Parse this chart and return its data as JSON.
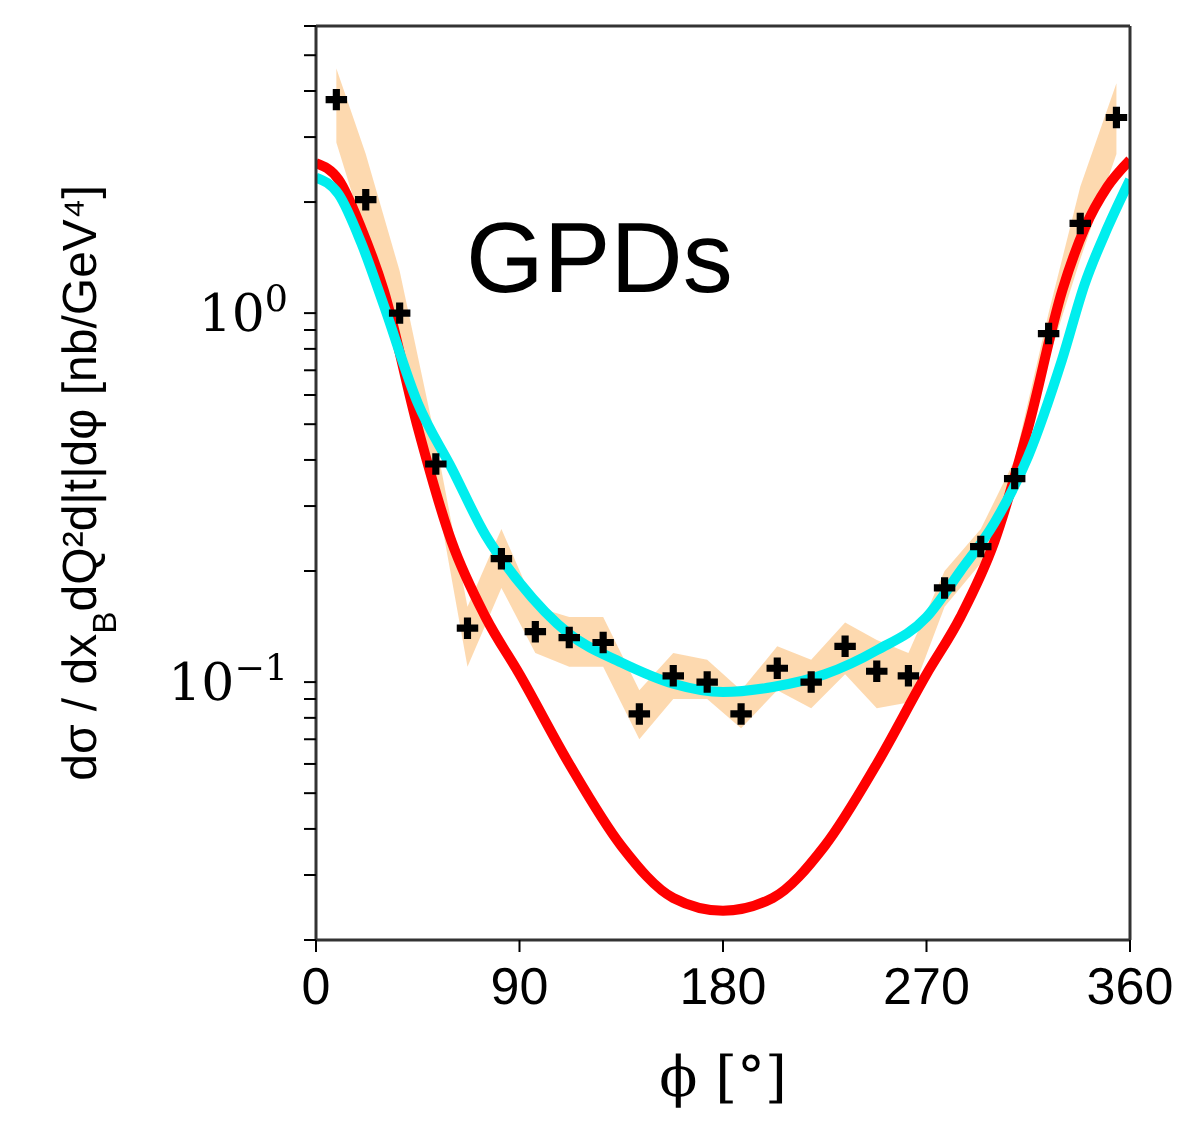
{
  "chart_data": {
    "type": "scatter",
    "title": "GPDs",
    "xlabel": "ϕ [°]",
    "ylabel": "dσ / dx$_{B}$dQ²d|t|dφ [nb/GeV⁴]",
    "xlim": [
      0,
      360
    ],
    "xticks": [
      0,
      90,
      180,
      270,
      360
    ],
    "log": "y",
    "ylim": [
      0.02,
      6
    ],
    "yticks": [
      {
        "value": 0.02,
        "label": null
      },
      {
        "value": 0.03,
        "label": null
      },
      {
        "value": 0.04,
        "label": null
      },
      {
        "value": 0.05,
        "label": null
      },
      {
        "value": 0.06,
        "label": null
      },
      {
        "value": 0.07,
        "label": null
      },
      {
        "value": 0.08,
        "label": null
      },
      {
        "value": 0.09,
        "label": null
      },
      {
        "value": 0.1,
        "label": "10$^{−1}$"
      },
      {
        "value": 0.2,
        "label": null
      },
      {
        "value": 0.3,
        "label": null
      },
      {
        "value": 0.4,
        "label": null
      },
      {
        "value": 0.5,
        "label": null
      },
      {
        "value": 0.6,
        "label": null
      },
      {
        "value": 0.7,
        "label": null
      },
      {
        "value": 0.8,
        "label": null
      },
      {
        "value": 0.9,
        "label": null
      },
      {
        "value": 1,
        "label": "10$^{0}$"
      },
      {
        "value": 2,
        "label": null
      },
      {
        "value": 3,
        "label": null
      },
      {
        "value": 4,
        "label": null
      },
      {
        "value": 5,
        "label": null
      },
      {
        "value": 6,
        "label": null
      }
    ],
    "grid": false,
    "legend": false,
    "series": [
      {
        "marker": "cross",
        "color": "#000000",
        "x": [
          9,
          22,
          37,
          53,
          67,
          82,
          97,
          112,
          127,
          143,
          158,
          173,
          188,
          204,
          219,
          234,
          248,
          262,
          278,
          294,
          309,
          324,
          338,
          354
        ],
        "values": [
          3.79,
          2.03,
          1.0,
          0.39,
          0.14,
          0.216,
          0.137,
          0.132,
          0.128,
          0.082,
          0.104,
          0.1,
          0.082,
          0.109,
          0.1,
          0.125,
          0.107,
          0.104,
          0.18,
          0.233,
          0.356,
          0.88,
          1.75,
          3.39
        ],
        "lower": [
          2.9,
          1.6,
          0.8,
          0.33,
          0.11,
          0.18,
          0.12,
          0.11,
          0.11,
          0.07,
          0.09,
          0.09,
          0.075,
          0.095,
          0.085,
          0.105,
          0.085,
          0.088,
          0.16,
          0.21,
          0.32,
          0.75,
          1.4,
          2.7
        ],
        "upper": [
          4.6,
          2.7,
          1.3,
          0.45,
          0.16,
          0.26,
          0.16,
          0.15,
          0.15,
          0.095,
          0.12,
          0.115,
          0.095,
          0.125,
          0.115,
          0.145,
          0.13,
          0.12,
          0.2,
          0.26,
          0.4,
          1.0,
          2.2,
          4.2
        ]
      },
      {
        "type": "line",
        "marker": "none",
        "color": "#ff0000",
        "x": [
          0,
          10,
          20,
          30,
          45,
          60,
          75,
          90,
          112,
          135,
          158,
          180,
          202,
          225,
          248,
          270,
          285,
          300,
          315,
          330,
          340,
          350,
          360
        ],
        "values": [
          2.55,
          2.3,
          1.7,
          1.15,
          0.49,
          0.24,
          0.15,
          0.105,
          0.06,
          0.036,
          0.026,
          0.024,
          0.026,
          0.036,
          0.06,
          0.105,
          0.15,
          0.24,
          0.49,
          1.15,
          1.7,
          2.2,
          2.6
        ]
      },
      {
        "type": "line",
        "marker": "none",
        "color": "#00eeee",
        "x": [
          0,
          10,
          20,
          30,
          45,
          60,
          75,
          90,
          112,
          135,
          158,
          180,
          202,
          225,
          248,
          270,
          285,
          300,
          315,
          330,
          340,
          350,
          360
        ],
        "values": [
          2.33,
          2.1,
          1.55,
          1.05,
          0.57,
          0.38,
          0.25,
          0.186,
          0.135,
          0.113,
          0.099,
          0.094,
          0.097,
          0.105,
          0.122,
          0.15,
          0.2,
          0.27,
          0.41,
          0.75,
          1.2,
          1.7,
          2.3
        ]
      }
    ]
  }
}
